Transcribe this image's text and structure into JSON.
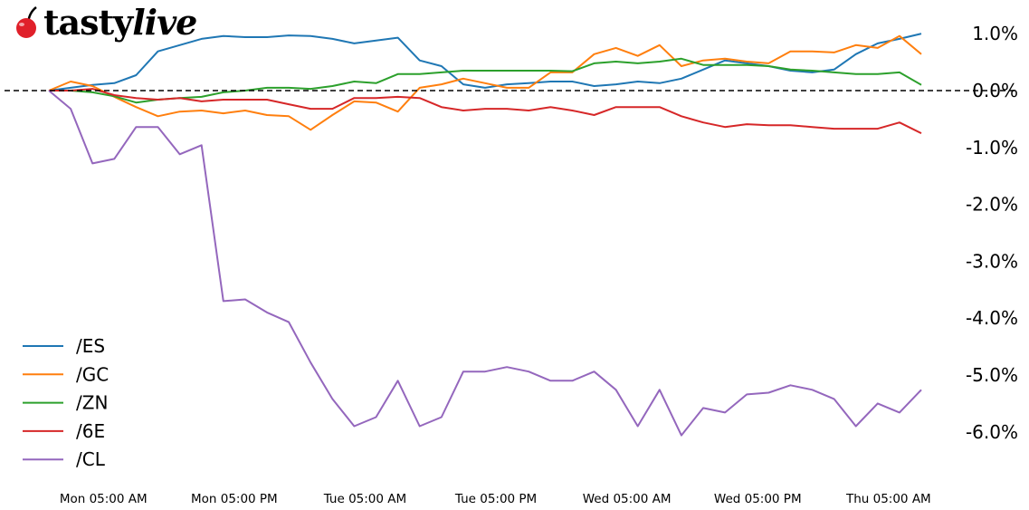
{
  "logo": {
    "brand": "tastylive",
    "icon": "cherry-icon"
  },
  "chart_data": {
    "type": "line",
    "title": "",
    "xlabel": "",
    "ylabel": "",
    "x": [
      "Mon 00:00",
      "Mon 02:00",
      "Mon 04:00",
      "Mon 06:00",
      "Mon 08:00",
      "Mon 10:00",
      "Mon 12:00",
      "Mon 14:00",
      "Mon 16:00",
      "Mon 18:00",
      "Mon 20:00",
      "Mon 22:00",
      "Tue 00:00",
      "Tue 02:00",
      "Tue 04:00",
      "Tue 06:00",
      "Tue 08:00",
      "Tue 10:00",
      "Tue 12:00",
      "Tue 14:00",
      "Tue 16:00",
      "Tue 18:00",
      "Tue 20:00",
      "Tue 22:00",
      "Wed 00:00",
      "Wed 02:00",
      "Wed 04:00",
      "Wed 06:00",
      "Wed 08:00",
      "Wed 10:00",
      "Wed 12:00",
      "Wed 14:00",
      "Wed 16:00",
      "Wed 18:00",
      "Wed 20:00",
      "Wed 22:00",
      "Thu 00:00",
      "Thu 02:00",
      "Thu 04:00",
      "Thu 06:00",
      "Thu 08:00"
    ],
    "x_ticks": [
      "Mon 05:00 AM",
      "Mon 05:00 PM",
      "Tue 05:00 AM",
      "Tue 05:00 PM",
      "Wed 05:00 AM",
      "Wed 05:00 PM",
      "Thu 05:00 AM"
    ],
    "y_ticks": [
      "1.0%",
      "0.0%",
      "-1.0%",
      "-2.0%",
      "-3.0%",
      "-4.0%",
      "-5.0%",
      "-6.0%"
    ],
    "y_tick_values": [
      1,
      0,
      -1,
      -2,
      -3,
      -4,
      -5,
      -6
    ],
    "ylim": [
      -6.9,
      1.3
    ],
    "y_unit": "%",
    "reference_line": {
      "value": 0,
      "style": "dashed",
      "color": "#000000"
    },
    "grid": false,
    "legend_position": "bottom-left",
    "series": [
      {
        "name": "/ES",
        "color": "#1f77b4",
        "values": [
          0,
          0.05,
          0.1,
          0.13,
          0.27,
          0.69,
          0.8,
          0.91,
          0.96,
          0.94,
          0.94,
          0.97,
          0.96,
          0.91,
          0.83,
          0.88,
          0.93,
          0.53,
          0.43,
          0.11,
          0.05,
          0.11,
          0.13,
          0.16,
          0.16,
          0.08,
          0.11,
          0.16,
          0.13,
          0.21,
          0.37,
          0.53,
          0.48,
          0.43,
          0.35,
          0.32,
          0.37,
          0.64,
          0.83,
          0.91,
          1.0
        ]
      },
      {
        "name": "/GC",
        "color": "#ff7f0e",
        "values": [
          0,
          0.16,
          0.08,
          -0.11,
          -0.29,
          -0.45,
          -0.37,
          -0.35,
          -0.4,
          -0.35,
          -0.43,
          -0.45,
          -0.69,
          -0.43,
          -0.19,
          -0.21,
          -0.37,
          0.05,
          0.11,
          0.21,
          0.13,
          0.05,
          0.05,
          0.32,
          0.32,
          0.64,
          0.75,
          0.61,
          0.8,
          0.43,
          0.53,
          0.56,
          0.51,
          0.48,
          0.69,
          0.69,
          0.67,
          0.8,
          0.75,
          0.96,
          0.64
        ]
      },
      {
        "name": "/ZN",
        "color": "#2ca02c",
        "values": [
          0,
          0,
          -0.03,
          -0.1,
          -0.21,
          -0.16,
          -0.13,
          -0.11,
          -0.03,
          0,
          0.05,
          0.05,
          0.03,
          0.08,
          0.16,
          0.13,
          0.29,
          0.29,
          0.32,
          0.35,
          0.35,
          0.35,
          0.35,
          0.35,
          0.34,
          0.48,
          0.51,
          0.48,
          0.51,
          0.56,
          0.45,
          0.45,
          0.45,
          0.43,
          0.37,
          0.35,
          0.32,
          0.29,
          0.29,
          0.32,
          0.1
        ]
      },
      {
        "name": "/6E",
        "color": "#d62728",
        "values": [
          0,
          0,
          0.03,
          -0.08,
          -0.13,
          -0.16,
          -0.13,
          -0.19,
          -0.16,
          -0.16,
          -0.16,
          -0.24,
          -0.32,
          -0.32,
          -0.13,
          -0.13,
          -0.11,
          -0.13,
          -0.29,
          -0.35,
          -0.32,
          -0.32,
          -0.35,
          -0.29,
          -0.35,
          -0.43,
          -0.29,
          -0.29,
          -0.29,
          -0.45,
          -0.56,
          -0.64,
          -0.59,
          -0.61,
          -0.61,
          -0.64,
          -0.67,
          -0.67,
          -0.67,
          -0.56,
          -0.75
        ]
      },
      {
        "name": "/CL",
        "color": "#9467bd",
        "values": [
          0,
          -0.32,
          -1.28,
          -1.2,
          -0.64,
          -0.64,
          -1.12,
          -0.96,
          -3.7,
          -3.67,
          -3.9,
          -4.07,
          -4.78,
          -5.42,
          -5.9,
          -5.74,
          -5.1,
          -5.9,
          -5.74,
          -4.94,
          -4.94,
          -4.86,
          -4.94,
          -5.1,
          -5.1,
          -4.94,
          -5.26,
          -5.9,
          -5.26,
          -6.06,
          -5.58,
          -5.66,
          -5.34,
          -5.31,
          -5.18,
          -5.26,
          -5.42,
          -5.9,
          -5.5,
          -5.66,
          -5.26
        ]
      }
    ]
  }
}
